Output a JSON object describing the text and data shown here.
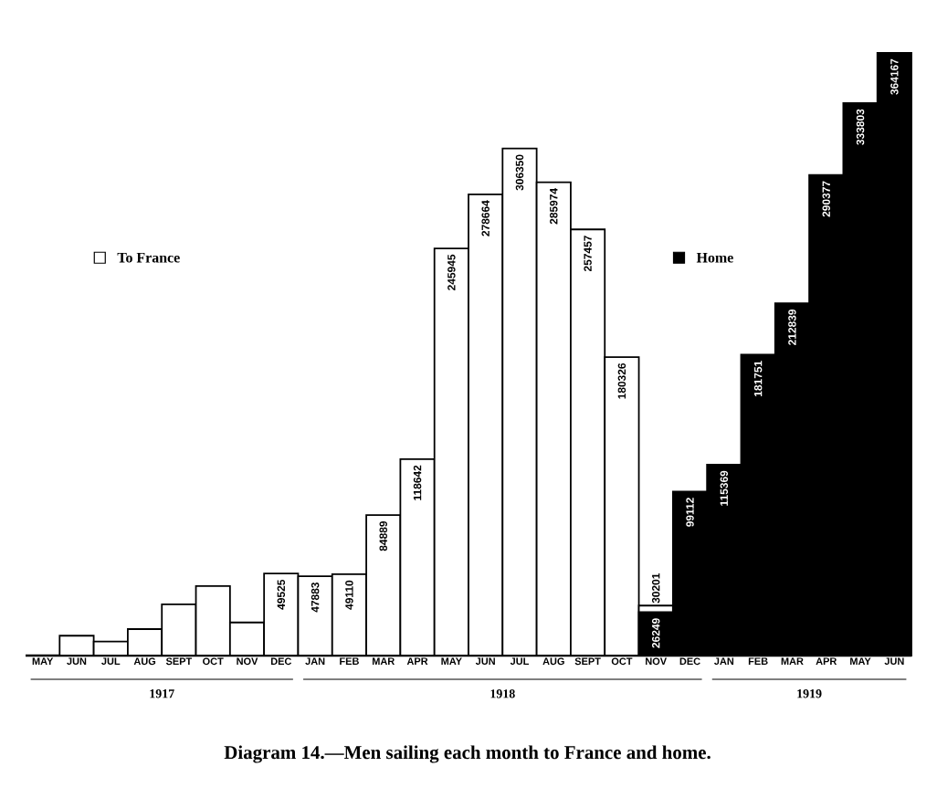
{
  "chart_data": {
    "type": "bar",
    "title": "Diagram 14.—Men sailing each month to France and home.",
    "categories": [
      "MAY",
      "JUN",
      "JUL",
      "AUG",
      "SEPT",
      "OCT",
      "NOV",
      "DEC",
      "JAN",
      "FEB",
      "MAR",
      "APR",
      "MAY",
      "JUN",
      "JUL",
      "AUG",
      "SEPT",
      "OCT",
      "NOV",
      "DEC",
      "JAN",
      "FEB",
      "MAR",
      "APR",
      "MAY",
      "JUN"
    ],
    "series": [
      {
        "name": "To France",
        "color": "#ffffff",
        "values": [
          null,
          12000,
          8500,
          16000,
          31000,
          42000,
          20000,
          49525,
          47883,
          49110,
          84889,
          118642,
          245945,
          278664,
          306350,
          285974,
          257457,
          180326,
          30201,
          null,
          null,
          null,
          null,
          null,
          null,
          null
        ],
        "value_labels": [
          null,
          null,
          null,
          null,
          null,
          null,
          null,
          "49525",
          "47883",
          "49110",
          "84889",
          "118642",
          "245945",
          "278664",
          "306350",
          "285974",
          "257457",
          "180326",
          "30201",
          null,
          null,
          null,
          null,
          null,
          null,
          null
        ]
      },
      {
        "name": "Home",
        "color": "#000000",
        "values": [
          null,
          null,
          null,
          null,
          null,
          null,
          null,
          null,
          null,
          null,
          null,
          null,
          null,
          null,
          null,
          null,
          null,
          null,
          26249,
          99112,
          115369,
          181751,
          212839,
          290377,
          333803,
          364167
        ],
        "value_labels": [
          null,
          null,
          null,
          null,
          null,
          null,
          null,
          null,
          null,
          null,
          null,
          null,
          null,
          null,
          null,
          null,
          null,
          null,
          "26249",
          "99112",
          "115369",
          "181751",
          "212839",
          "290377",
          "333803",
          "364167"
        ]
      }
    ],
    "legend": "top",
    "annotations": [
      "1917",
      "1918",
      "1919"
    ]
  }
}
